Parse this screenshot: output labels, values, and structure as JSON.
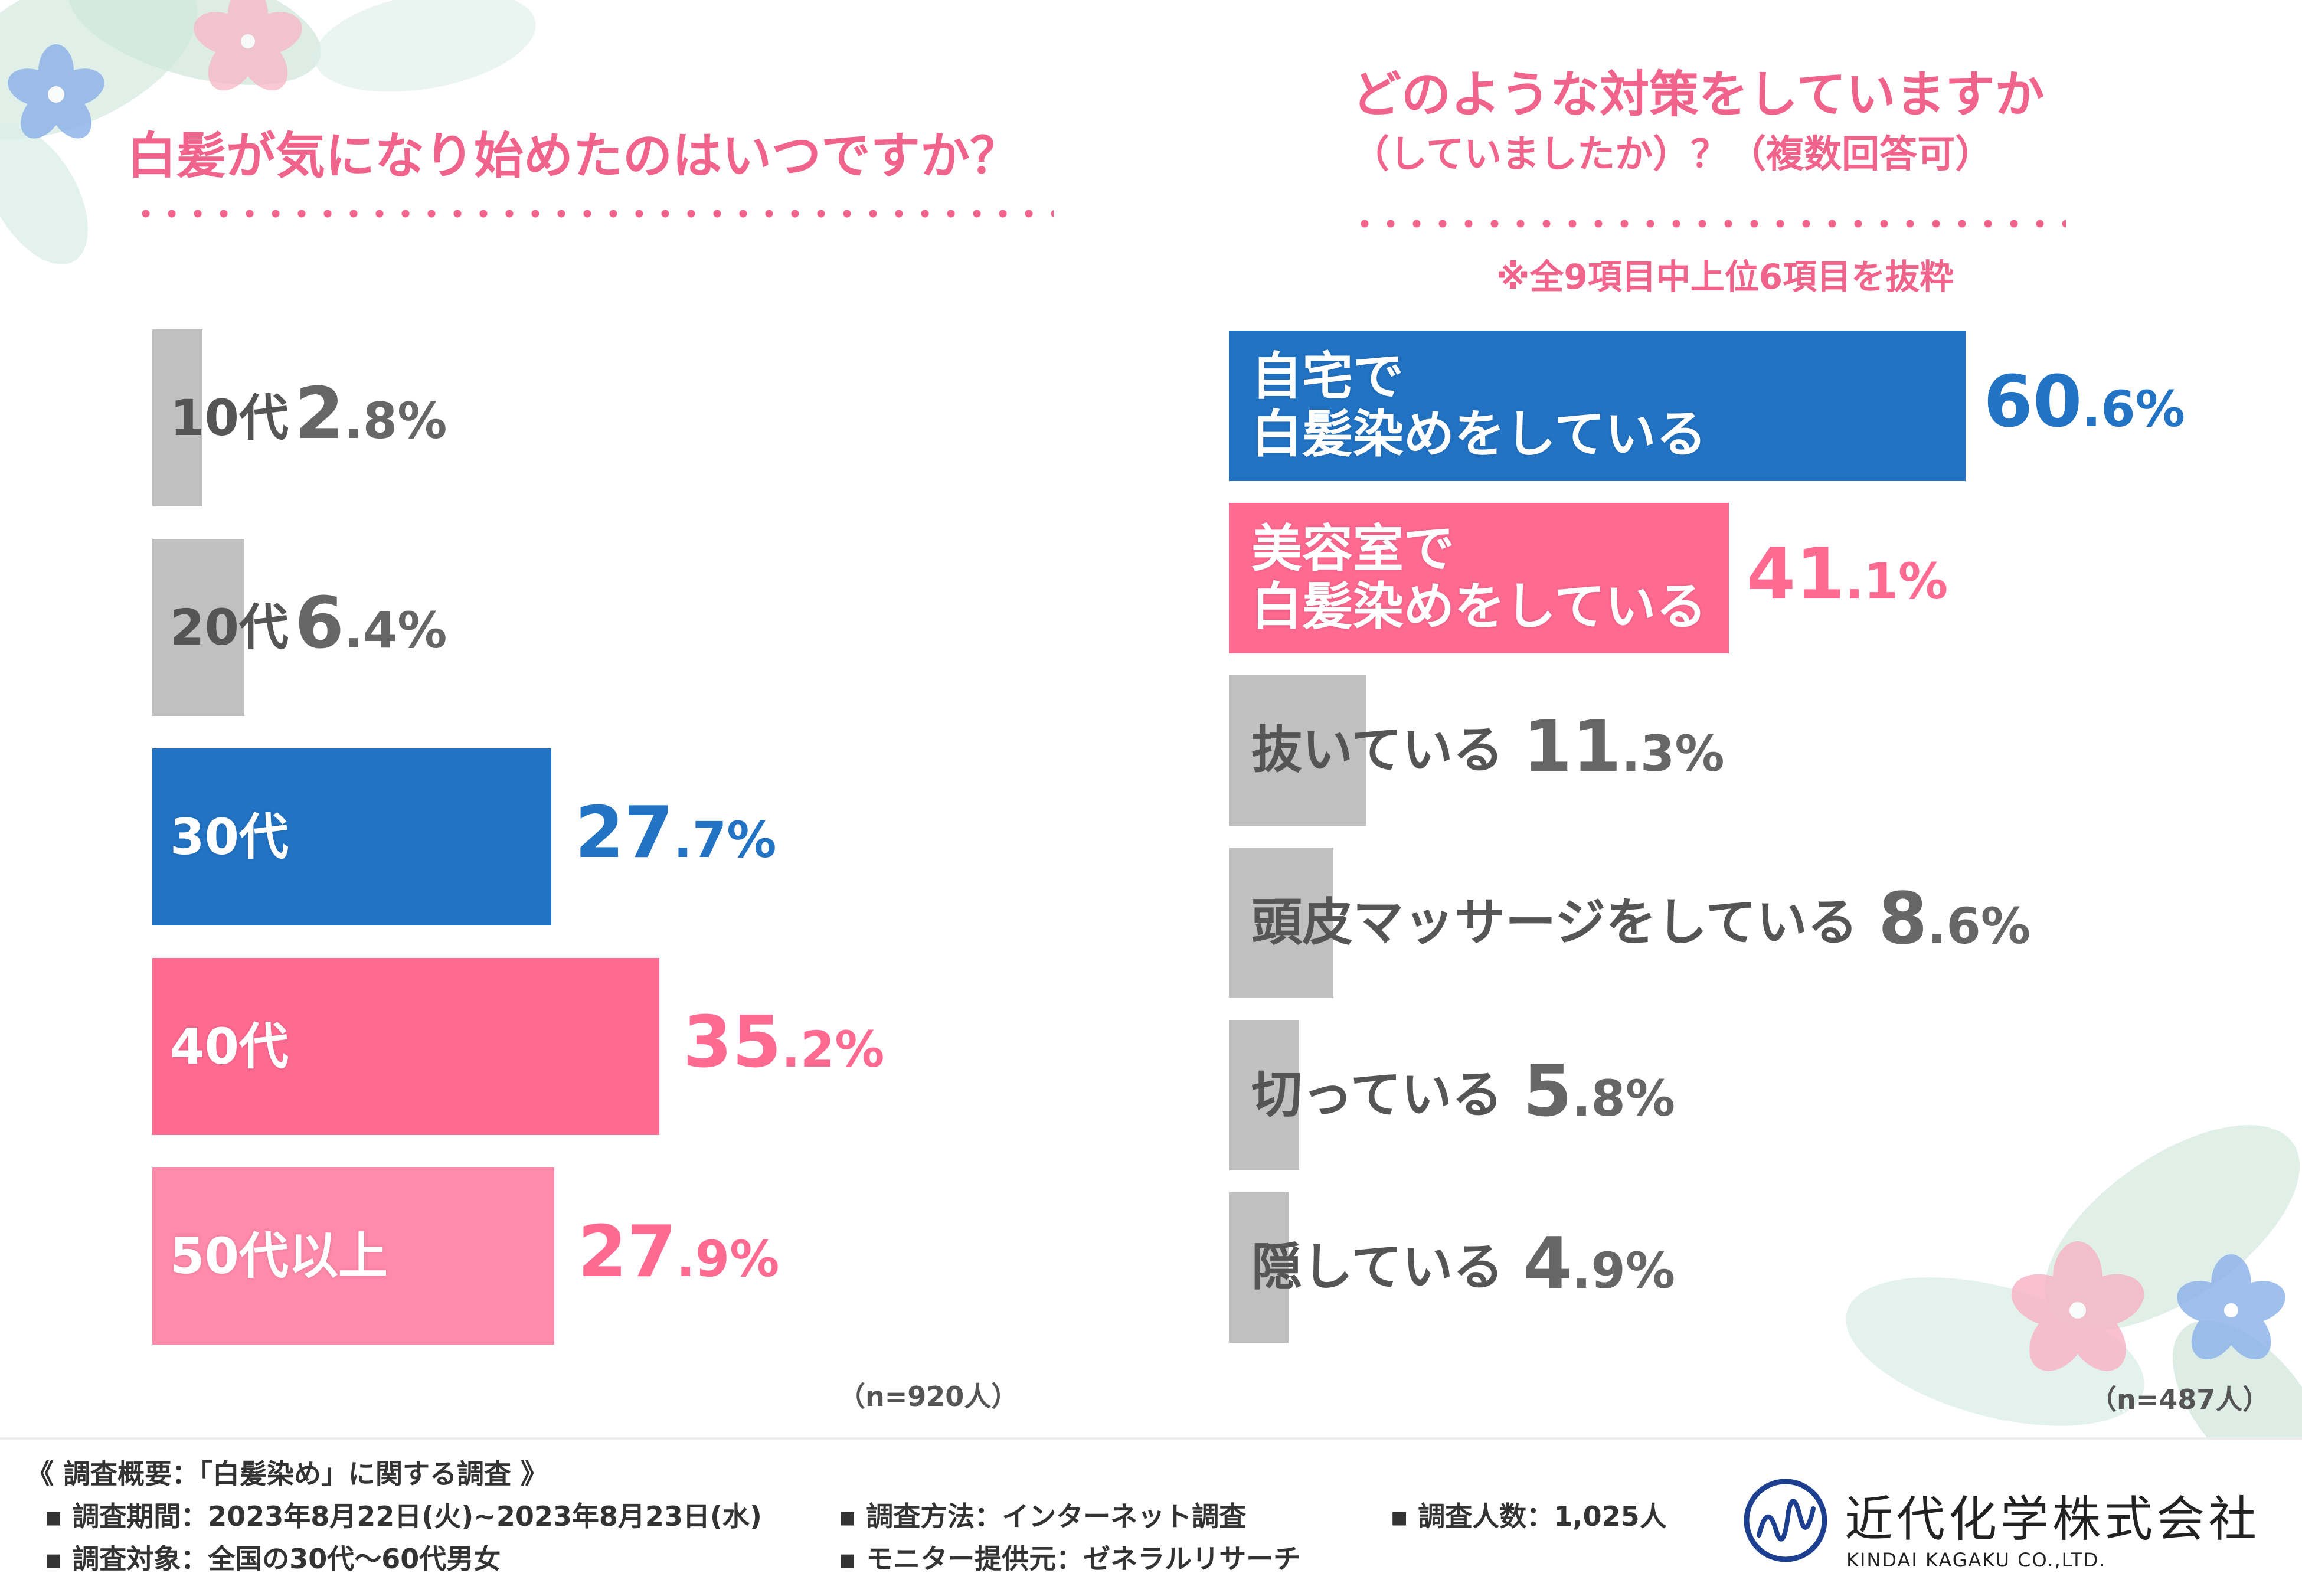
{
  "colors": {
    "blue": "#2273c3",
    "pink": "#ff6a91",
    "light_pink": "#ff8aaa",
    "gray": "#c0c0c0",
    "title_pink": "#f0648c",
    "value_gray": "#666666"
  },
  "left": {
    "title": "白髪が気になり始めたのはいつですか？",
    "n_label": "（n=920人）"
  },
  "right": {
    "title_line1": "どのような対策をしていますか",
    "title_line2": "（していましたか）？（複数回答可）",
    "note": "※全9項目中上位6項目を抜粋",
    "n_label": "（n=487人）"
  },
  "chart_data": [
    {
      "type": "bar",
      "orientation": "horizontal",
      "title": "白髪が気になり始めたのはいつですか？",
      "categories": [
        "10代",
        "20代",
        "30代",
        "40代",
        "50代以上"
      ],
      "values": [
        2.8,
        6.4,
        27.7,
        35.2,
        27.9
      ],
      "value_labels": [
        [
          "2",
          ".8%"
        ],
        [
          "6",
          ".4%"
        ],
        [
          "27",
          ".7%"
        ],
        [
          "35",
          ".2%"
        ],
        [
          "27",
          ".9%"
        ]
      ],
      "bar_colors": [
        "#c0c0c0",
        "#c0c0c0",
        "#2273c3",
        "#ff6a91",
        "#ff8aaa"
      ],
      "label_colors": [
        "#555555",
        "#555555",
        "#ffffff",
        "#ffffff",
        "#ffffff"
      ],
      "value_colors": [
        "#666666",
        "#666666",
        "#2273c3",
        "#ff6a91",
        "#ff6a91"
      ],
      "unit": "%",
      "n": "n=920人"
    },
    {
      "type": "bar",
      "orientation": "horizontal",
      "title": "どのような対策をしていますか（していましたか）？（複数回答可）",
      "categories": [
        [
          "自宅で",
          "白髪染めをしている"
        ],
        [
          "美容室で",
          "白髪染めをしている"
        ],
        [
          "抜いている"
        ],
        [
          "頭皮マッサージをしている"
        ],
        [
          "切っている"
        ],
        [
          "隠している"
        ]
      ],
      "values": [
        60.6,
        41.1,
        11.3,
        8.6,
        5.8,
        4.9
      ],
      "value_labels": [
        [
          "60",
          ".6%"
        ],
        [
          "41",
          ".1%"
        ],
        [
          "11",
          ".3%"
        ],
        [
          "8",
          ".6%"
        ],
        [
          "5",
          ".8%"
        ],
        [
          "4",
          ".9%"
        ]
      ],
      "bar_colors": [
        "#2273c3",
        "#ff6a91",
        "#c0c0c0",
        "#c0c0c0",
        "#c0c0c0",
        "#c0c0c0"
      ],
      "label_colors": [
        "#ffffff",
        "#ffffff",
        "#555555",
        "#555555",
        "#555555",
        "#555555"
      ],
      "value_colors": [
        "#2273c3",
        "#ff6a91",
        "#666666",
        "#666666",
        "#666666",
        "#666666"
      ],
      "unit": "%",
      "n": "n=487人"
    }
  ],
  "footer": {
    "heading": "《 調査概要：「白髪染め」に関する調査 》",
    "period": "▪ 調査期間：2023年8月22日(火)~2023年8月23日(水)",
    "target": "▪ 調査対象：全国の30代～60代男女",
    "method": "▪ 調査方法：インターネット調査",
    "provider": "▪ モニター提供元：ゼネラルリサーチ",
    "count": "▪ 調査人数：1,025人"
  },
  "company": {
    "name_ja": "近代化学株式会社",
    "name_en": "KINDAI KAGAKU CO.,LTD."
  }
}
